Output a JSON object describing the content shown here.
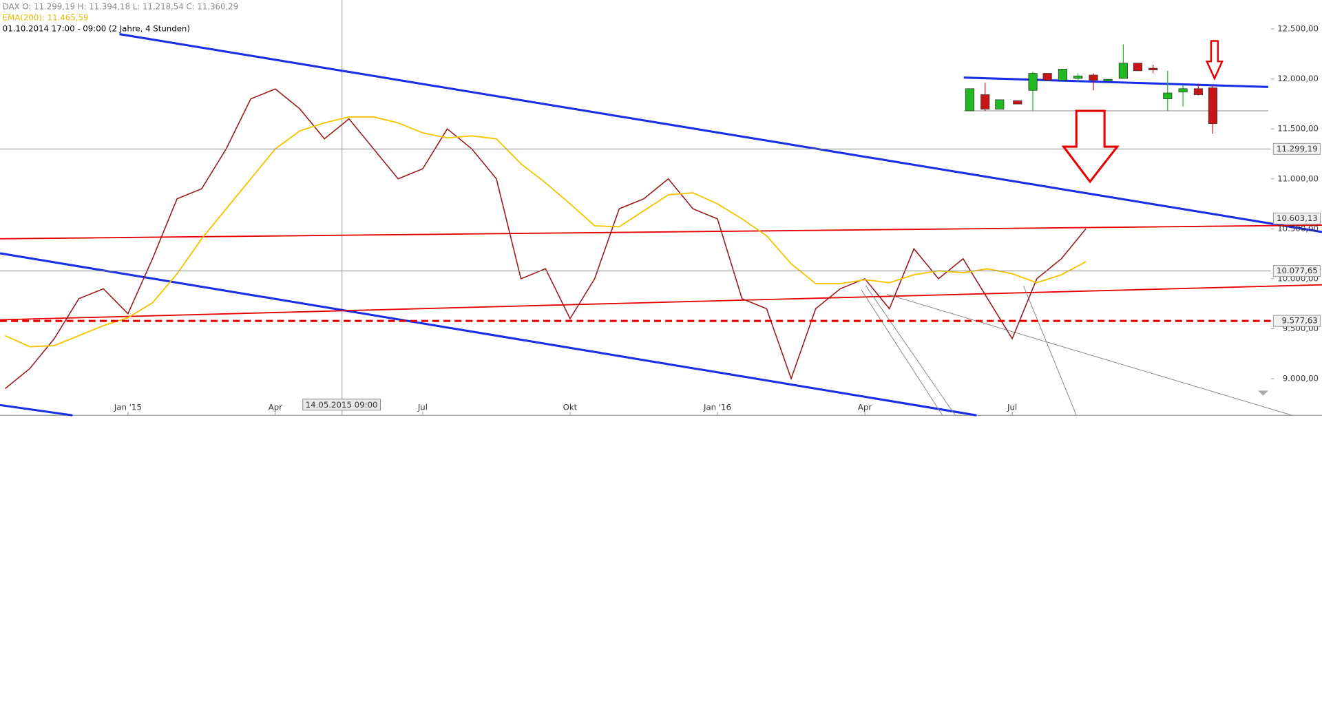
{
  "chart_data": {
    "type": "line",
    "header": [
      "DAX   O: 11.299,19   H: 11.394,18   L: 11.218,54   C: 11.360,29",
      "EMA(200): 11.465,59",
      "01.10.2014 17:00 - 09:00 (2 Jahre, 4 Stunden)"
    ],
    "header_colors": [
      "#888888",
      "#e6b800",
      "#000000"
    ],
    "crosshair_label": "14.05.2015 09:00",
    "categories": [
      null,
      null,
      null,
      null,
      null,
      "Jan '15",
      null,
      null,
      null,
      null,
      null,
      "Apr",
      null,
      null,
      null,
      null,
      null,
      "Jul",
      null,
      null,
      null,
      null,
      null,
      "Okt",
      null,
      null,
      null,
      null,
      null,
      "Jan '16",
      null,
      null,
      null,
      null,
      null,
      "Apr",
      null,
      null,
      null,
      null,
      null,
      "Jul",
      null,
      null,
      null
    ],
    "series": [
      {
        "color": "#9b1c1c",
        "values": [
          8900,
          9100,
          9400,
          9800,
          9900,
          9650,
          10200,
          10800,
          10900,
          11300,
          11800,
          11900,
          11700,
          11400,
          11600,
          11300,
          11000,
          11100,
          11500,
          11300,
          11000,
          10000,
          10100,
          9600,
          10000,
          10700,
          10800,
          11000,
          10700,
          10600,
          9800,
          9700,
          9000,
          9700,
          9900,
          10000,
          9700,
          10300,
          10000,
          10200,
          9800,
          9400,
          10000,
          10200,
          10500
        ]
      },
      {
        "color": "#f5c400",
        "values": [
          9430,
          9320,
          9330,
          9430,
          9530,
          9610,
          9760,
          10050,
          10400,
          10700,
          11000,
          11300,
          11480,
          11560,
          11620,
          11620,
          11560,
          11460,
          11410,
          11430,
          11400,
          11150,
          10960,
          10750,
          10530,
          10520,
          10680,
          10840,
          10860,
          10750,
          10600,
          10430,
          10150,
          9950,
          9950,
          9990,
          9960,
          10040,
          10080,
          10060,
          10100,
          10050,
          9960,
          10040,
          10170
        ]
      }
    ],
    "ylim": [
      8633,
      12790
    ],
    "yticks": [
      {
        "value": 12500,
        "label": "12.500,00"
      },
      {
        "value": 12000,
        "label": "12.000,00"
      },
      {
        "value": 11500,
        "label": "11.500,00"
      },
      {
        "value": 11000,
        "label": "11.000,00"
      },
      {
        "value": 10500,
        "label": "10.500,00"
      },
      {
        "value": 10000,
        "label": "10.000,00"
      },
      {
        "value": 9500,
        "label": "9.500,00"
      },
      {
        "value": 9000,
        "label": "9.000,00"
      }
    ],
    "levels": [
      {
        "value": 11299.19,
        "label": "11.299,19",
        "color": "#888888",
        "dashed": false,
        "line": true
      },
      {
        "value": 10603.13,
        "label": "10.603,13",
        "color": "#888888",
        "dashed": false,
        "line": false
      },
      {
        "value": 10077.65,
        "label": "10.077,65",
        "color": "#888888",
        "dashed": false,
        "line": true
      },
      {
        "value": 9577.63,
        "label": "9.577,63",
        "color": "#ee0000",
        "dashed": true,
        "line": true
      }
    ]
  }
}
